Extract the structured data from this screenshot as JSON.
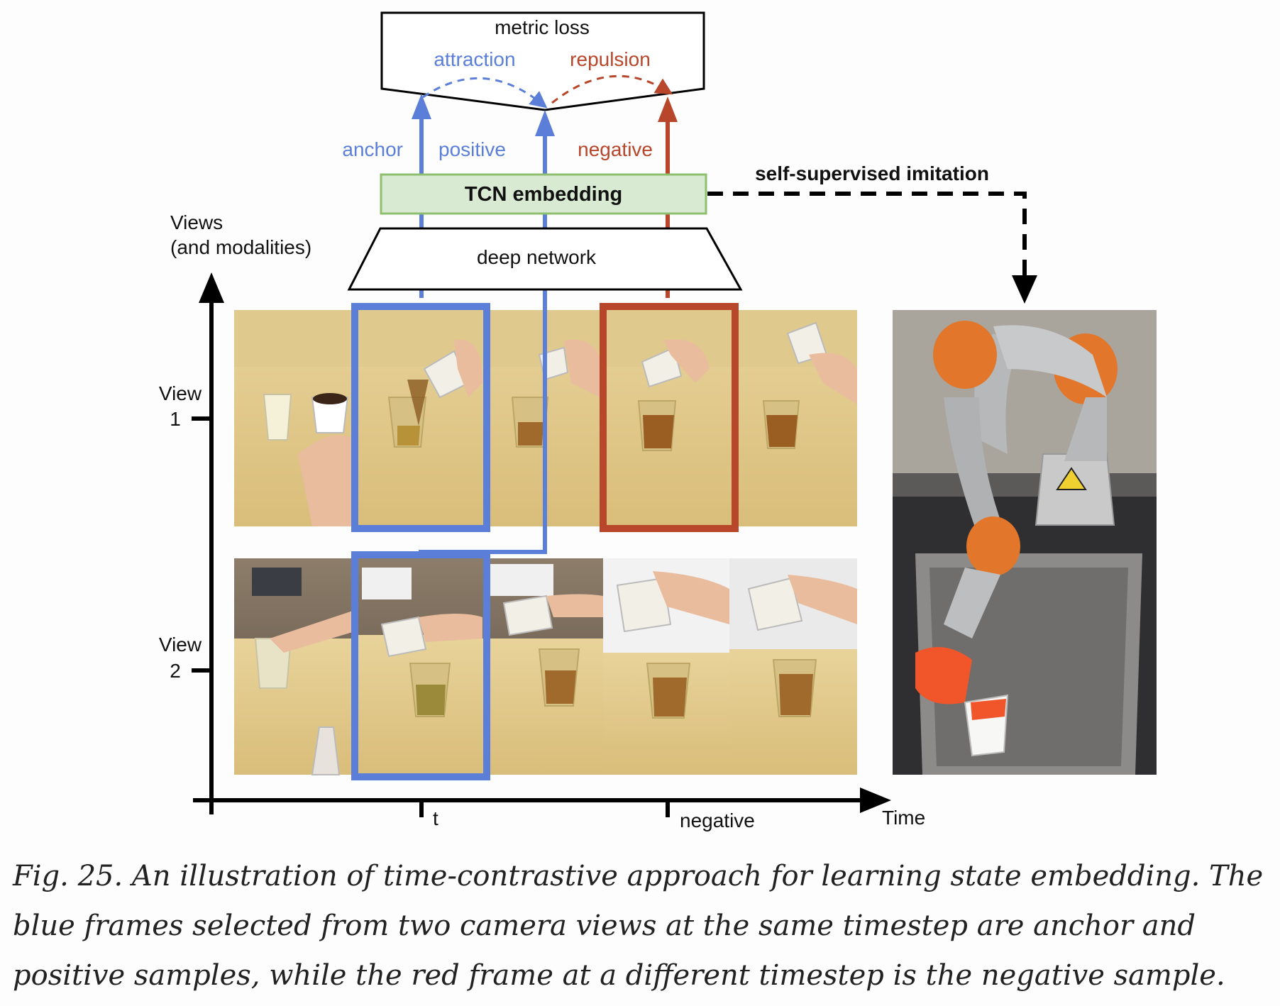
{
  "diagram": {
    "metric_loss_label": "metric loss",
    "attraction_label": "attraction",
    "repulsion_label": "repulsion",
    "anchor_label": "anchor",
    "positive_label": "positive",
    "negative_label": "negative",
    "tcn_label": "TCN embedding",
    "deep_network_label": "deep network",
    "self_supervised_label": "self-supervised imitation",
    "views_axis_label_line1": "Views",
    "views_axis_label_line2": "(and modalities)",
    "view1_label_line1": "View",
    "view1_label_line2": "1",
    "view2_label_line1": "View",
    "view2_label_line2": "2",
    "time_axis_label": "Time",
    "tick_t_label": "t",
    "tick_negative_label": "negative"
  },
  "colors": {
    "blue": "#5b7fd8",
    "red": "#b8462a",
    "tcn_fill": "#d9ead3",
    "tcn_stroke": "#8dbf6f",
    "black": "#000000"
  },
  "caption": "Fig. 25. An illustration of time-contrastive approach for learning state embedding. The blue frames selected from two camera views at the same timestep are anchor and positive samples, while the red frame at a different timestep is the negative sample."
}
